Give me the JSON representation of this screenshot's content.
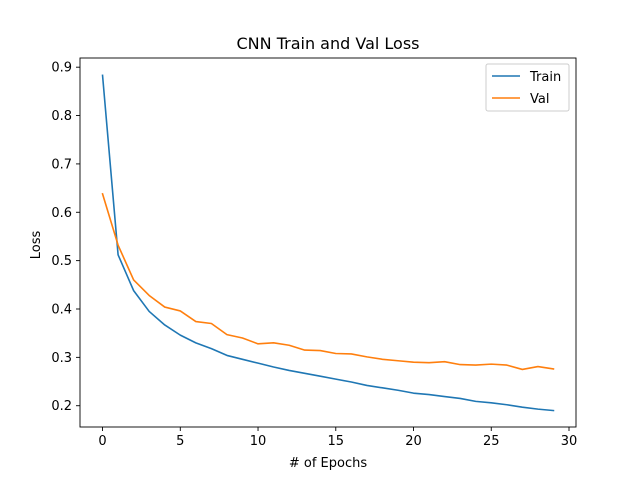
{
  "chart_data": {
    "type": "line",
    "title": "CNN Train and Val Loss",
    "xlabel": "# of Epochs",
    "ylabel": "Loss",
    "xlim": [
      -1.45,
      30.45
    ],
    "ylim": [
      0.156,
      0.919
    ],
    "xticks": [
      0,
      5,
      10,
      15,
      20,
      25,
      30
    ],
    "yticks": [
      0.2,
      0.3,
      0.4,
      0.5,
      0.6,
      0.7,
      0.8,
      0.9
    ],
    "xtick_labels": [
      "0",
      "5",
      "10",
      "15",
      "20",
      "25",
      "30"
    ],
    "ytick_labels": [
      "0.2",
      "0.3",
      "0.4",
      "0.5",
      "0.6",
      "0.7",
      "0.8",
      "0.9"
    ],
    "grid": false,
    "legend_position": "top-right",
    "x": [
      0,
      1,
      2,
      3,
      4,
      5,
      6,
      7,
      8,
      9,
      10,
      11,
      12,
      13,
      14,
      15,
      16,
      17,
      18,
      19,
      20,
      21,
      22,
      23,
      24,
      25,
      26,
      27,
      28,
      29
    ],
    "series": [
      {
        "name": "Train",
        "color": "#1f77b4",
        "values": [
          0.883,
          0.512,
          0.438,
          0.395,
          0.367,
          0.346,
          0.33,
          0.318,
          0.304,
          0.296,
          0.288,
          0.28,
          0.273,
          0.267,
          0.261,
          0.255,
          0.249,
          0.242,
          0.237,
          0.232,
          0.226,
          0.223,
          0.219,
          0.215,
          0.209,
          0.206,
          0.202,
          0.197,
          0.193,
          0.19
        ]
      },
      {
        "name": "Val",
        "color": "#ff7f0e",
        "values": [
          0.638,
          0.532,
          0.46,
          0.428,
          0.404,
          0.396,
          0.374,
          0.37,
          0.347,
          0.34,
          0.328,
          0.33,
          0.325,
          0.315,
          0.314,
          0.308,
          0.307,
          0.301,
          0.296,
          0.293,
          0.29,
          0.289,
          0.291,
          0.285,
          0.284,
          0.286,
          0.284,
          0.275,
          0.281,
          0.276
        ]
      }
    ]
  }
}
